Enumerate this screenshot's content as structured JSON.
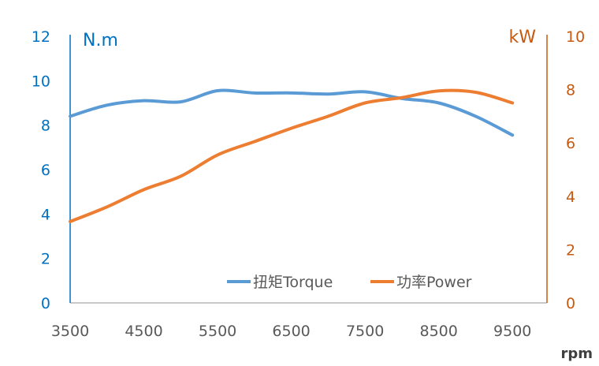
{
  "chart_data": {
    "type": "line",
    "x": [
      3500,
      4000,
      4500,
      5000,
      5500,
      6000,
      6500,
      7000,
      7500,
      8000,
      8500,
      9000,
      9500
    ],
    "series": [
      {
        "name": "扭矩Torque",
        "axis": "left",
        "color": "#5B9BD5",
        "values": [
          8.4,
          8.9,
          9.1,
          9.05,
          9.55,
          9.45,
          9.45,
          9.4,
          9.5,
          9.2,
          9.0,
          8.4,
          7.55
        ]
      },
      {
        "name": "功率Power",
        "axis": "right",
        "color": "#ED7D31",
        "values": [
          3.05,
          3.6,
          4.25,
          4.75,
          5.55,
          6.05,
          6.55,
          7.0,
          7.5,
          7.7,
          7.95,
          7.9,
          7.5
        ]
      }
    ],
    "xlabel": "rpm",
    "ylabel_left": "N.m",
    "ylabel_right": "kW",
    "xticks": [
      3500,
      4500,
      5500,
      6500,
      7500,
      8500,
      9500
    ],
    "xlim": [
      3500,
      10000
    ],
    "ylim_left": [
      0,
      12
    ],
    "yticks_left": [
      0,
      2,
      4,
      6,
      8,
      10,
      12
    ],
    "ylim_right": [
      0,
      10
    ],
    "yticks_right": [
      0,
      2,
      4,
      6,
      8,
      10
    ],
    "left_axis_color": "#0070C0",
    "right_axis_color": "#C55A11",
    "grid": false,
    "legend": "bottom-right"
  }
}
